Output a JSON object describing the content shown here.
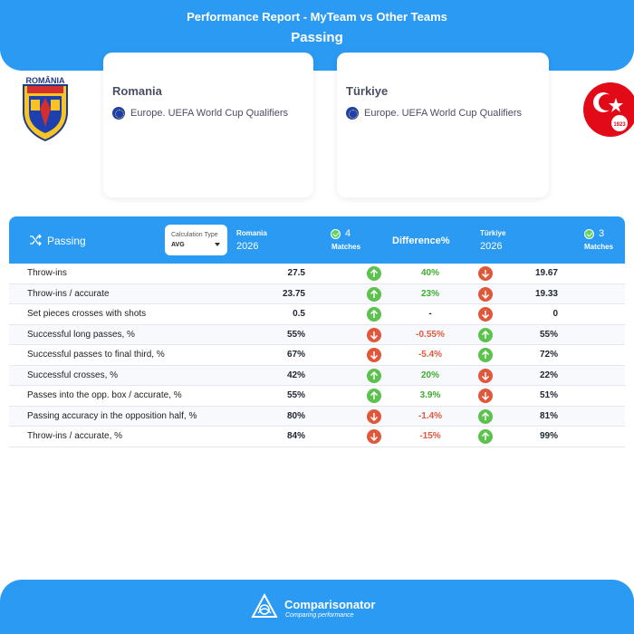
{
  "header": {
    "title": "Performance Report - MyTeam vs Other Teams",
    "subtitle": "Passing"
  },
  "team_a": {
    "name": "Romania",
    "competition": "Europe. UEFA World Cup Qualifiers",
    "crest_text": "ROMÂNIA",
    "season": "2026",
    "matches_count": "4",
    "matches_label": "Matches"
  },
  "team_b": {
    "name": "Türkiye",
    "competition": "Europe. UEFA World Cup Qualifiers",
    "crest_text": "1923",
    "season": "2026",
    "matches_count": "3",
    "matches_label": "Matches"
  },
  "table": {
    "category_label": "Passing",
    "calc_type_label": "Calculation Type",
    "calc_type_value": "AVG",
    "difference_label": "Difference%",
    "rows": [
      {
        "metric": "Throw-ins",
        "a": "27.5",
        "a_arrow": "up",
        "diff": "40%",
        "diff_kind": "pos",
        "b_arrow": "down",
        "b": "19.67"
      },
      {
        "metric": "Throw-ins / accurate",
        "a": "23.75",
        "a_arrow": "up",
        "diff": "23%",
        "diff_kind": "pos",
        "b_arrow": "down",
        "b": "19.33"
      },
      {
        "metric": "Set pieces crosses with shots",
        "a": "0.5",
        "a_arrow": "up",
        "diff": "-",
        "diff_kind": "neu",
        "b_arrow": "down",
        "b": "0"
      },
      {
        "metric": "Successful long passes, %",
        "a": "55%",
        "a_arrow": "down",
        "diff": "-0.55%",
        "diff_kind": "neg",
        "b_arrow": "up",
        "b": "55%"
      },
      {
        "metric": "Successful passes to final third, %",
        "a": "67%",
        "a_arrow": "down",
        "diff": "-5.4%",
        "diff_kind": "neg",
        "b_arrow": "up",
        "b": "72%"
      },
      {
        "metric": "Successful crosses, %",
        "a": "42%",
        "a_arrow": "up",
        "diff": "20%",
        "diff_kind": "pos",
        "b_arrow": "down",
        "b": "22%"
      },
      {
        "metric": "Passes into the opp. box / accurate, %",
        "a": "55%",
        "a_arrow": "up",
        "diff": "3.9%",
        "diff_kind": "pos",
        "b_arrow": "down",
        "b": "51%"
      },
      {
        "metric": "Passing accuracy in the opposition half, %",
        "a": "80%",
        "a_arrow": "down",
        "diff": "-1.4%",
        "diff_kind": "neg",
        "b_arrow": "up",
        "b": "81%"
      },
      {
        "metric": "Throw-ins / accurate, %",
        "a": "84%",
        "a_arrow": "down",
        "diff": "-15%",
        "diff_kind": "neg",
        "b_arrow": "up",
        "b": "99%"
      }
    ]
  },
  "footer": {
    "brand": "Comparisonator",
    "tagline": "Comparing performance"
  },
  "colors": {
    "accent": "#2b9af3",
    "up": "#5cc14e",
    "down": "#e0583b"
  }
}
